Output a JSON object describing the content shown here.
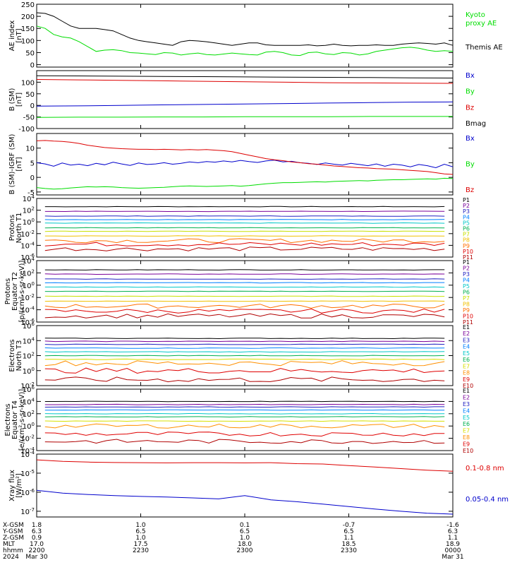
{
  "time_axis": {
    "rows": [
      {
        "label": "X-GSM",
        "values": [
          "1.8",
          "1.0",
          "0.1",
          "-0.7",
          "-1.6"
        ]
      },
      {
        "label": "Y-GSM",
        "values": [
          "6.3",
          "6.5",
          "6.5",
          "6.5",
          "6.3"
        ]
      },
      {
        "label": "Z-GSM",
        "values": [
          "0.9",
          "1.0",
          "1.0",
          "1.1",
          "1.1"
        ]
      },
      {
        "label": "MLT",
        "values": [
          "17.0",
          "17.5",
          "18.0",
          "18.5",
          "18.9"
        ]
      },
      {
        "label": "hhmm",
        "values": [
          "2200",
          "2230",
          "2300",
          "2330",
          "0000"
        ]
      },
      {
        "label": "2024",
        "values": [
          "Mar 30",
          "",
          "",
          "",
          "Mar 31"
        ]
      }
    ]
  },
  "chart_data": [
    {
      "id": "ae",
      "type": "line",
      "ylabel": [
        "AE index",
        "[nT]"
      ],
      "ylim": [
        -10,
        250
      ],
      "yticks": [
        0,
        50,
        100,
        150,
        200,
        250
      ],
      "ytick_labels": [
        "0",
        "50",
        "100",
        "150",
        "200",
        "250"
      ],
      "log": false,
      "series": [
        {
          "name": "Themis AE",
          "color": "#000000",
          "y": [
            215,
            212,
            200,
            180,
            160,
            150,
            150,
            150,
            145,
            140,
            125,
            110,
            100,
            95,
            90,
            85,
            80,
            95,
            100,
            98,
            95,
            90,
            85,
            80,
            85,
            90,
            90,
            82,
            80,
            80,
            80,
            80,
            82,
            78,
            80,
            85,
            80,
            78,
            80,
            80,
            82,
            80,
            80,
            85,
            88,
            90,
            88,
            85,
            90,
            80
          ]
        },
        {
          "name": "Kyoto proxy AE",
          "color": "#00dd00",
          "y": [
            160,
            150,
            125,
            115,
            110,
            95,
            75,
            55,
            60,
            62,
            58,
            50,
            48,
            45,
            42,
            50,
            48,
            40,
            45,
            48,
            42,
            40,
            44,
            48,
            45,
            42,
            40,
            52,
            55,
            50,
            40,
            38,
            50,
            52,
            45,
            42,
            50,
            48,
            40,
            45,
            55,
            60,
            65,
            70,
            72,
            68,
            60,
            55,
            58,
            55
          ]
        }
      ],
      "legend": [
        "Kyoto",
        "proxy AE",
        "Themis AE"
      ],
      "legend_colors": [
        "#00dd00",
        "#00dd00",
        "#000000"
      ]
    },
    {
      "id": "bsm",
      "type": "line",
      "ylabel": [
        "B (SM)",
        "[nT]"
      ],
      "ylim": [
        -100,
        150
      ],
      "yticks": [
        -100,
        -50,
        0,
        50,
        100
      ],
      "ytick_labels": [
        "-100",
        "-50",
        "0",
        "50",
        "100"
      ],
      "log": false,
      "series": [
        {
          "name": "Bmag",
          "color": "#000000",
          "y": [
            128,
            127,
            126,
            125,
            124,
            123,
            122,
            121,
            120,
            119,
            118
          ]
        },
        {
          "name": "Bx",
          "color": "#0000cc",
          "y": [
            -3,
            -2,
            0,
            2,
            4,
            6,
            8,
            10,
            12,
            14,
            15
          ]
        },
        {
          "name": "By",
          "color": "#00dd00",
          "y": [
            -52,
            -51,
            -51,
            -50,
            -50,
            -49,
            -49,
            -49,
            -48,
            -48,
            -48
          ]
        },
        {
          "name": "Bz",
          "color": "#dd0000",
          "y": [
            112,
            110,
            108,
            106,
            104,
            102,
            100,
            98,
            97,
            96,
            95
          ]
        }
      ],
      "legend": [
        "Bx",
        "By",
        "Bz",
        "Bmag"
      ],
      "legend_colors": [
        "#0000cc",
        "#00dd00",
        "#dd0000",
        "#000000"
      ]
    },
    {
      "id": "bigrf",
      "type": "line",
      "ylabel": [
        "B (SM)-IGRF (SM)",
        "[nT]"
      ],
      "ylim": [
        -6,
        15
      ],
      "yticks": [
        -5,
        0,
        5,
        10
      ],
      "ytick_labels": [
        "-5",
        "0",
        "5",
        "10"
      ],
      "log": false,
      "series": [
        {
          "name": "Bx",
          "color": "#0000cc",
          "y": [
            5,
            4.6,
            3.8,
            4.9,
            4.2,
            4.5,
            4.0,
            4.8,
            4.3,
            5.2,
            4.6,
            4.1,
            4.9,
            4.4,
            4.6,
            5.0,
            4.5,
            4.8,
            5.3,
            5.0,
            5.4,
            5.2,
            5.6,
            5.3,
            5.8,
            5.4,
            5.1,
            5.6,
            5.9,
            5.3,
            5.5,
            5.0,
            4.8,
            4.4,
            4.9,
            4.5,
            4.2,
            4.8,
            4.4,
            4.0,
            4.6,
            3.8,
            4.5,
            4.2,
            3.6,
            4.4,
            4.0,
            3.3,
            4.5,
            3.6
          ]
        },
        {
          "name": "By",
          "color": "#00dd00",
          "y": [
            -3.5,
            -3.8,
            -4.0,
            -3.9,
            -3.6,
            -3.4,
            -3.2,
            -3.3,
            -3.2,
            -3.3,
            -3.5,
            -3.6,
            -3.7,
            -3.6,
            -3.5,
            -3.4,
            -3.2,
            -3.0,
            -2.9,
            -3.0,
            -3.1,
            -3.0,
            -2.9,
            -2.8,
            -3.0,
            -2.8,
            -2.5,
            -2.2,
            -2.0,
            -1.8,
            -1.8,
            -1.7,
            -1.6,
            -1.5,
            -1.6,
            -1.4,
            -1.3,
            -1.2,
            -1.1,
            -1.2,
            -1.0,
            -0.9,
            -0.8,
            -0.8,
            -0.7,
            -0.6,
            -0.5,
            -0.6,
            -0.3,
            -0.4
          ]
        },
        {
          "name": "Bz",
          "color": "#dd0000",
          "y": [
            12.5,
            12.6,
            12.4,
            12.3,
            12.0,
            11.6,
            11.0,
            10.6,
            10.2,
            10.0,
            9.8,
            9.7,
            9.6,
            9.6,
            9.5,
            9.6,
            9.5,
            9.4,
            9.5,
            9.4,
            9.5,
            9.3,
            9.1,
            8.8,
            8.2,
            7.6,
            7.0,
            6.4,
            6.0,
            5.7,
            5.3,
            5.0,
            4.7,
            4.5,
            4.2,
            3.9,
            3.7,
            3.5,
            3.3,
            3.2,
            3.0,
            2.9,
            2.8,
            2.6,
            2.4,
            2.2,
            2.0,
            1.6,
            1.2,
            1.0
          ]
        }
      ],
      "legend": [
        "Bx",
        "By",
        "Bz"
      ],
      "legend_colors": [
        "#0000cc",
        "#00dd00",
        "#dd0000"
      ]
    },
    {
      "id": "p_north",
      "type": "line",
      "ylabel": [
        "Protons",
        "North T1"
      ],
      "ylim_exp": [
        -6,
        4
      ],
      "yticks_exp": [
        -6,
        -4,
        -2,
        0,
        2,
        4
      ],
      "log": true,
      "levels": [
        2.6,
        1.8,
        1.0,
        0.4,
        -0.2,
        -1.0,
        -1.6,
        -2.4,
        -3.2,
        -3.8,
        -4.6
      ],
      "series_names": [
        "P1",
        "P2",
        "P3",
        "P4",
        "P5",
        "P6",
        "P7",
        "P8",
        "P9",
        "P10",
        "P11"
      ],
      "series_colors": [
        "#000000",
        "#7a0099",
        "#2020c0",
        "#0080ff",
        "#00c8c8",
        "#00b050",
        "#c8e000",
        "#f0c000",
        "#ff7000",
        "#e00000",
        "#b00000"
      ]
    },
    {
      "id": "p_eq",
      "type": "line",
      "ylabel": [
        "Protons",
        "Equator T2",
        "[p/(cm²-s-sr-keV)]"
      ],
      "ylim_exp": [
        -6,
        4
      ],
      "yticks_exp": [
        -6,
        -4,
        -2,
        0,
        2,
        4
      ],
      "log": true,
      "levels": [
        2.5,
        1.8,
        1.0,
        0.4,
        -0.3,
        -1.0,
        -1.8,
        -2.6,
        -3.4,
        -4.2,
        -5.0
      ],
      "series_names": [
        "P1",
        "P2",
        "P3",
        "P4",
        "P5",
        "P6",
        "P7",
        "P8",
        "P9",
        "P10",
        "P11"
      ],
      "series_colors": [
        "#000000",
        "#7a0099",
        "#2020c0",
        "#0080ff",
        "#00c8c8",
        "#00b050",
        "#c8e000",
        "#f0c000",
        "#ff7000",
        "#e00000",
        "#b00000"
      ]
    },
    {
      "id": "e_north",
      "type": "line",
      "ylabel": [
        "Electrons",
        "North T3"
      ],
      "ylim_exp": [
        -2,
        6
      ],
      "yticks_exp": [
        -2,
        0,
        2,
        4,
        6
      ],
      "log": true,
      "levels": [
        4.3,
        3.9,
        3.5,
        3.0,
        2.5,
        2.0,
        1.5,
        1.0,
        0.0,
        -1.2
      ],
      "series_names": [
        "E1",
        "E2",
        "E3",
        "E4",
        "E5",
        "E6",
        "E7",
        "E8",
        "E9",
        "E10"
      ],
      "series_colors": [
        "#000000",
        "#7a0099",
        "#2020c0",
        "#0080ff",
        "#00c8c8",
        "#00b050",
        "#d8e000",
        "#ff9000",
        "#e00000",
        "#b00000"
      ]
    },
    {
      "id": "e_eq",
      "type": "line",
      "ylabel": [
        "Electrons",
        "Equator T4",
        "[e/(cm²-s-sr-keV)]"
      ],
      "ylim_exp": [
        -4,
        6
      ],
      "yticks_exp": [
        -4,
        -2,
        0,
        2,
        4,
        6
      ],
      "log": true,
      "levels": [
        4.0,
        3.5,
        3.1,
        2.6,
        2.0,
        1.5,
        0.8,
        0.0,
        -1.3,
        -2.5
      ],
      "series_names": [
        "E1",
        "E2",
        "E3",
        "E4",
        "E5",
        "E6",
        "E7",
        "E8",
        "E9",
        "E10"
      ],
      "series_colors": [
        "#000000",
        "#7a0099",
        "#2020c0",
        "#0080ff",
        "#00c8c8",
        "#00b050",
        "#d8e000",
        "#ff9000",
        "#e00000",
        "#b00000"
      ]
    },
    {
      "id": "xray",
      "type": "line",
      "ylabel": [
        "Xray flux",
        "[W/m²]"
      ],
      "ylim_exp": [
        -7.3,
        -4
      ],
      "yticks_exp": [
        -7,
        -6,
        -5,
        -4
      ],
      "log": true,
      "series": [
        {
          "name": "0.1-0.8 nm",
          "color": "#dd0000",
          "y": [
            -4.3,
            -4.38,
            -4.42,
            -4.44,
            -4.45,
            -4.46,
            -4.45,
            -4.45,
            -4.46,
            -4.45,
            -4.5,
            -4.52,
            -4.6,
            -4.68,
            -4.76,
            -4.84,
            -4.9
          ]
        },
        {
          "name": "0.05-0.4 nm",
          "color": "#0000cc",
          "y": [
            -5.9,
            -6.05,
            -6.12,
            -6.18,
            -6.22,
            -6.25,
            -6.3,
            -6.35,
            -6.18,
            -6.4,
            -6.5,
            -6.62,
            -6.75,
            -6.88,
            -7.0,
            -7.1,
            -7.15
          ]
        }
      ],
      "legend": [
        "0.1-0.8 nm",
        "0.05-0.4 nm"
      ],
      "legend_colors": [
        "#dd0000",
        "#0000cc"
      ]
    }
  ]
}
